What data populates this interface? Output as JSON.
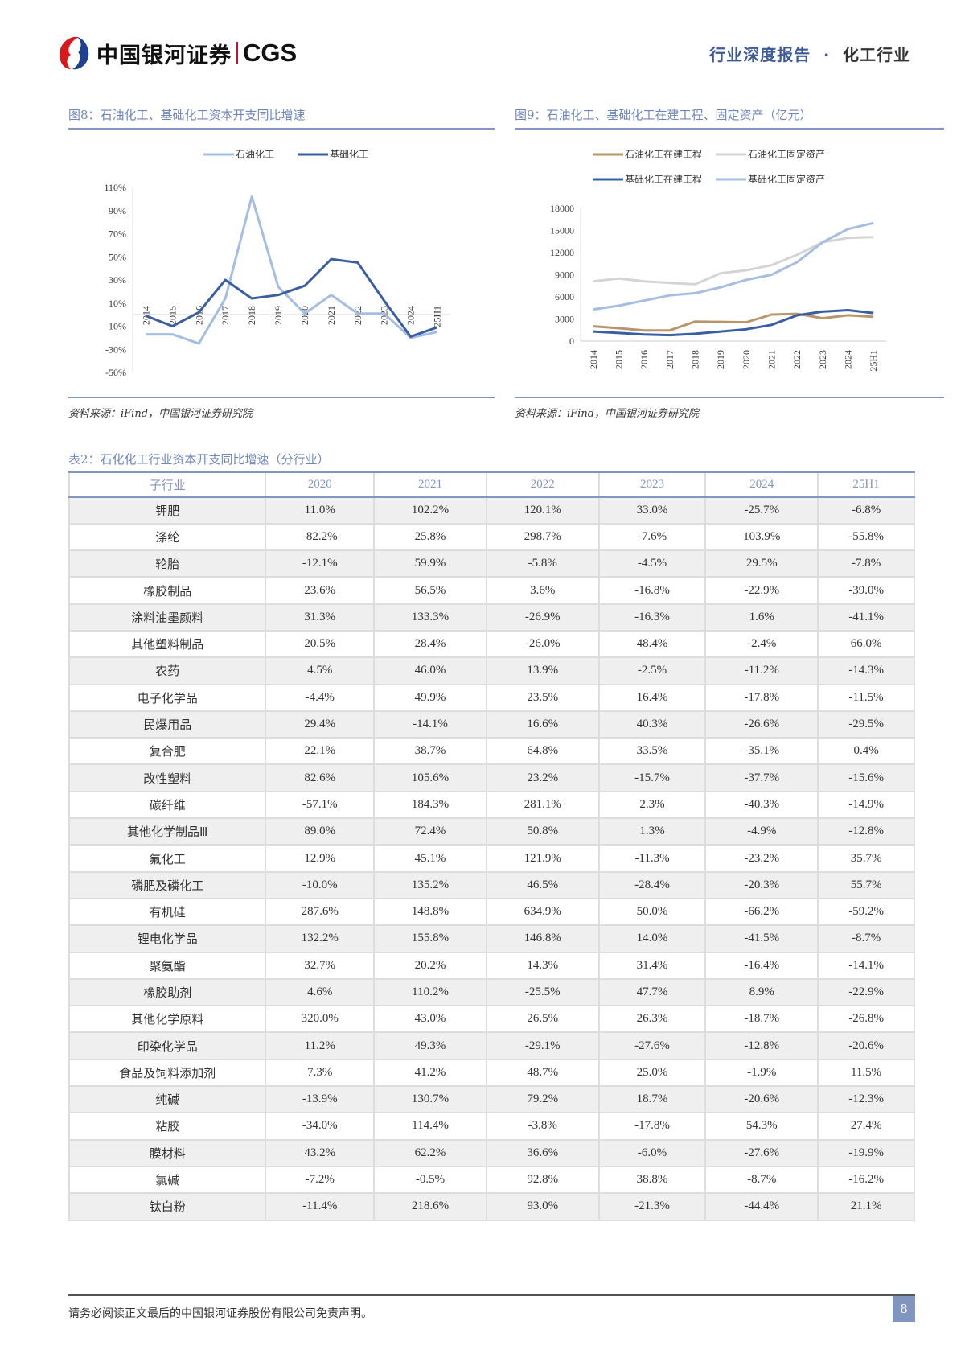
{
  "header": {
    "brand_cn": "中国银河证券",
    "brand_en": "CGS",
    "report_type": "行业深度报告",
    "separator": "·",
    "sector": "化工行业"
  },
  "figures": [
    {
      "title": "图8：石油化工、基础化工资本开支同比增速",
      "source": "资料来源：iFind，中国银河证券研究院"
    },
    {
      "title": "图9：石油化工、基础化工在建工程、固定资产（亿元）",
      "source": "资料来源：iFind，中国银河证券研究院"
    }
  ],
  "chart_data": [
    {
      "type": "line",
      "title": "图8：石油化工、基础化工资本开支同比增速",
      "xlabel": "",
      "ylabel": "",
      "x": [
        "2014",
        "2015",
        "2016",
        "2017",
        "2018",
        "2019",
        "2020",
        "2021",
        "2022",
        "2023",
        "2024",
        "25H1"
      ],
      "yticks": [
        "110%",
        "90%",
        "70%",
        "50%",
        "30%",
        "10%",
        "-10%",
        "-30%",
        "-50%"
      ],
      "ylim": [
        -50,
        110
      ],
      "legend_position": "top",
      "grid": false,
      "series": [
        {
          "name": "石油化工",
          "color": "#a6bde3",
          "values": [
            -17,
            -17,
            -25,
            14,
            102,
            24,
            1,
            17,
            1,
            1,
            -20,
            -15
          ]
        },
        {
          "name": "基础化工",
          "color": "#3a5ea4",
          "values": [
            -1,
            -10,
            2,
            30,
            14,
            17,
            25,
            48,
            45,
            12,
            -19,
            -11
          ]
        }
      ]
    },
    {
      "type": "line",
      "title": "图9：石油化工、基础化工在建工程、固定资产（亿元）",
      "xlabel": "",
      "ylabel": "亿元",
      "x": [
        "2014",
        "2015",
        "2016",
        "2017",
        "2018",
        "2019",
        "2020",
        "2021",
        "2022",
        "2023",
        "2024",
        "25H1"
      ],
      "yticks": [
        "18000",
        "15000",
        "12000",
        "9000",
        "6000",
        "3000",
        "0"
      ],
      "ylim": [
        0,
        18000
      ],
      "legend_position": "top",
      "grid": false,
      "series": [
        {
          "name": "石油化工在建工程",
          "color": "#b8956a",
          "values": [
            2000,
            1750,
            1450,
            1450,
            2650,
            2600,
            2550,
            3600,
            3700,
            3100,
            3500,
            3300
          ]
        },
        {
          "name": "石油化工固定资产",
          "color": "#d4d4d4",
          "values": [
            8100,
            8500,
            8100,
            7900,
            7700,
            9200,
            9600,
            10300,
            11700,
            13400,
            14000,
            14100
          ]
        },
        {
          "name": "基础化工在建工程",
          "color": "#3a5ea4",
          "values": [
            1300,
            1100,
            900,
            800,
            1000,
            1300,
            1600,
            2200,
            3500,
            4000,
            4200,
            3800
          ]
        },
        {
          "name": "基础化工固定资产",
          "color": "#a6bde3",
          "values": [
            4300,
            4800,
            5500,
            6200,
            6500,
            7300,
            8300,
            9000,
            10700,
            13400,
            15200,
            16000
          ]
        }
      ]
    }
  ],
  "table": {
    "title": "表2：石化化工行业资本开支同比增速（分行业）",
    "columns": [
      "子行业",
      "2020",
      "2021",
      "2022",
      "2023",
      "2024",
      "25H1"
    ],
    "rows": [
      [
        "钾肥",
        "11.0%",
        "102.2%",
        "120.1%",
        "33.0%",
        "-25.7%",
        "-6.8%"
      ],
      [
        "涤纶",
        "-82.2%",
        "25.8%",
        "298.7%",
        "-7.6%",
        "103.9%",
        "-55.8%"
      ],
      [
        "轮胎",
        "-12.1%",
        "59.9%",
        "-5.8%",
        "-4.5%",
        "29.5%",
        "-7.8%"
      ],
      [
        "橡胶制品",
        "23.6%",
        "56.5%",
        "3.6%",
        "-16.8%",
        "-22.9%",
        "-39.0%"
      ],
      [
        "涂料油墨颜料",
        "31.3%",
        "133.3%",
        "-26.9%",
        "-16.3%",
        "1.6%",
        "-41.1%"
      ],
      [
        "其他塑料制品",
        "20.5%",
        "28.4%",
        "-26.0%",
        "48.4%",
        "-2.4%",
        "66.0%"
      ],
      [
        "农药",
        "4.5%",
        "46.0%",
        "13.9%",
        "-2.5%",
        "-11.2%",
        "-14.3%"
      ],
      [
        "电子化学品",
        "-4.4%",
        "49.9%",
        "23.5%",
        "16.4%",
        "-17.8%",
        "-11.5%"
      ],
      [
        "民爆用品",
        "29.4%",
        "-14.1%",
        "16.6%",
        "40.3%",
        "-26.6%",
        "-29.5%"
      ],
      [
        "复合肥",
        "22.1%",
        "38.7%",
        "64.8%",
        "33.5%",
        "-35.1%",
        "0.4%"
      ],
      [
        "改性塑料",
        "82.6%",
        "105.6%",
        "23.2%",
        "-15.7%",
        "-37.7%",
        "-15.6%"
      ],
      [
        "碳纤维",
        "-57.1%",
        "184.3%",
        "281.1%",
        "2.3%",
        "-40.3%",
        "-14.9%"
      ],
      [
        "其他化学制品Ⅲ",
        "89.0%",
        "72.4%",
        "50.8%",
        "1.3%",
        "-4.9%",
        "-12.8%"
      ],
      [
        "氟化工",
        "12.9%",
        "45.1%",
        "121.9%",
        "-11.3%",
        "-23.2%",
        "35.7%"
      ],
      [
        "磷肥及磷化工",
        "-10.0%",
        "135.2%",
        "46.5%",
        "-28.4%",
        "-20.3%",
        "55.7%"
      ],
      [
        "有机硅",
        "287.6%",
        "148.8%",
        "634.9%",
        "50.0%",
        "-66.2%",
        "-59.2%"
      ],
      [
        "锂电化学品",
        "132.2%",
        "155.8%",
        "146.8%",
        "14.0%",
        "-41.5%",
        "-8.7%"
      ],
      [
        "聚氨酯",
        "32.7%",
        "20.2%",
        "14.3%",
        "31.4%",
        "-16.4%",
        "-14.1%"
      ],
      [
        "橡胶助剂",
        "4.6%",
        "110.2%",
        "-25.5%",
        "47.7%",
        "8.9%",
        "-22.9%"
      ],
      [
        "其他化学原料",
        "320.0%",
        "43.0%",
        "26.5%",
        "26.3%",
        "-18.7%",
        "-26.8%"
      ],
      [
        "印染化学品",
        "11.2%",
        "49.3%",
        "-29.1%",
        "-27.6%",
        "-12.8%",
        "-20.6%"
      ],
      [
        "食品及饲料添加剂",
        "7.3%",
        "41.2%",
        "48.7%",
        "25.0%",
        "-1.9%",
        "11.5%"
      ],
      [
        "纯碱",
        "-13.9%",
        "130.7%",
        "79.2%",
        "18.7%",
        "-20.6%",
        "-12.3%"
      ],
      [
        "粘胶",
        "-34.0%",
        "114.4%",
        "-3.8%",
        "-17.8%",
        "54.3%",
        "27.4%"
      ],
      [
        "膜材料",
        "43.2%",
        "62.2%",
        "36.6%",
        "-6.0%",
        "-27.6%",
        "-19.9%"
      ],
      [
        "氯碱",
        "-7.2%",
        "-0.5%",
        "92.8%",
        "38.8%",
        "-8.7%",
        "-16.2%"
      ],
      [
        "钛白粉",
        "-11.4%",
        "218.6%",
        "93.0%",
        "-21.3%",
        "-44.4%",
        "21.1%"
      ]
    ]
  },
  "footer": {
    "disclaimer": "请务必阅读正文最后的中国银河证券股份有限公司免责声明。",
    "page_number": "8"
  }
}
